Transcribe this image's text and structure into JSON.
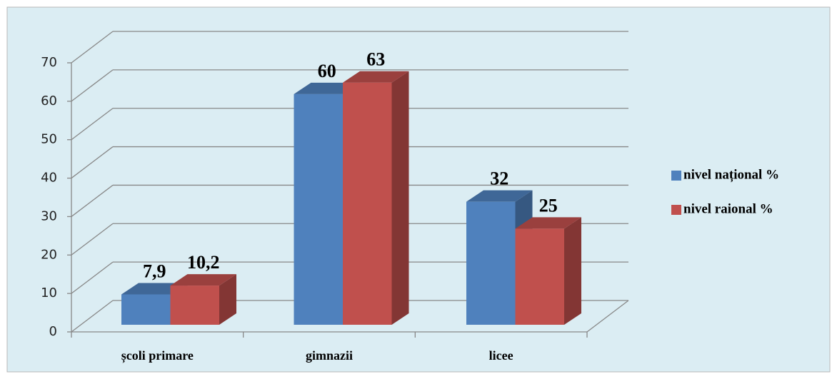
{
  "chart_data": {
    "type": "bar3d",
    "categories": [
      "școli primare",
      "gimnazii",
      "licee"
    ],
    "series": [
      {
        "name": "nivel național %",
        "color": "#4f81bd",
        "values": [
          7.9,
          60,
          32
        ],
        "value_labels": [
          "7,9",
          "60",
          "32"
        ]
      },
      {
        "name": "nivel raional %",
        "color": "#c0504d",
        "values": [
          10.2,
          63,
          25
        ],
        "value_labels": [
          "10,2",
          "63",
          "25"
        ]
      }
    ],
    "ylim": [
      0,
      70
    ],
    "yticks": [
      0,
      10,
      20,
      30,
      40,
      50,
      60,
      70
    ],
    "grid": true,
    "legend": "right"
  }
}
